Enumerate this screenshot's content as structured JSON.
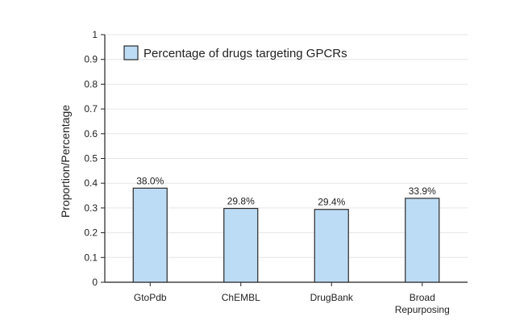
{
  "chart_data": {
    "type": "bar",
    "categories": [
      [
        "GtoPdb"
      ],
      [
        "ChEMBL"
      ],
      [
        "DrugBank"
      ],
      [
        "Broad",
        "Repurposing"
      ]
    ],
    "series": [
      {
        "name": "Percentage of drugs targeting GPCRs",
        "values": [
          0.38,
          0.298,
          0.294,
          0.339
        ],
        "labels": [
          "38.0%",
          "29.8%",
          "29.4%",
          "33.9%"
        ]
      }
    ],
    "ylabel": "Proportion/Percentage",
    "ylim": [
      0,
      1
    ],
    "yticks": [
      "0",
      "0.1",
      "0.2",
      "0.3",
      "0.4",
      "0.5",
      "0.6",
      "0.7",
      "0.8",
      "0.9",
      "1"
    ],
    "grid": true,
    "legend_position": "top-left",
    "colors": {
      "bar_fill": "#bcdcf5",
      "bar_stroke": "#2a2a2a",
      "grid": "#e6e6e6",
      "axis": "#222222"
    }
  }
}
